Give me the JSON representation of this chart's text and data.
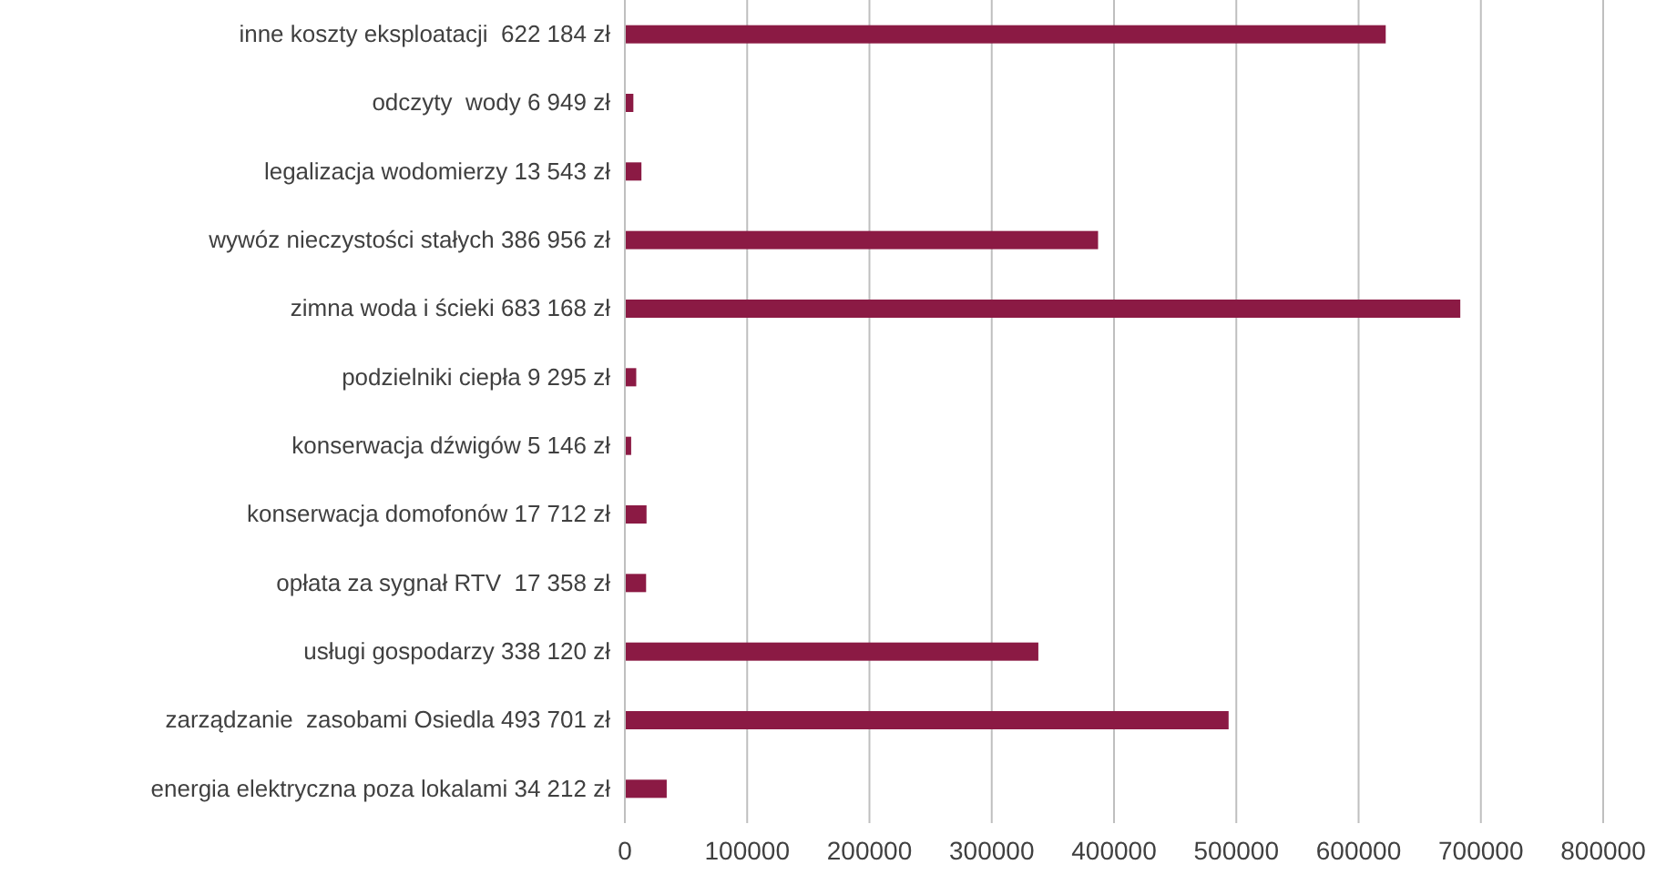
{
  "chart_data": {
    "type": "bar",
    "orientation": "horizontal",
    "categories": [
      "inne koszty eksploatacji  622 184 zł",
      "odczyty  wody 6 949 zł",
      "legalizacja wodomierzy 13 543 zł",
      "wywóz nieczystości stałych 386 956 zł",
      "zimna woda i ścieki 683 168 zł",
      "podzielniki ciepła 9 295 zł",
      "konserwacja dźwigów 5 146 zł",
      "konserwacja domofonów 17 712 zł",
      "opłata za sygnał RTV  17 358 zł",
      "usługi gospodarzy 338 120 zł",
      "zarządzanie  zasobami Osiedla 493 701 zł",
      "energia elektryczna poza lokalami 34 212 zł"
    ],
    "values": [
      622184,
      6949,
      13543,
      386956,
      683168,
      9295,
      5146,
      17712,
      17358,
      338120,
      493701,
      34212
    ],
    "color": "#8b1a44",
    "xlim": [
      0,
      800000
    ],
    "xticks": [
      0,
      100000,
      200000,
      300000,
      400000,
      500000,
      600000,
      700000,
      800000
    ],
    "grid": "x"
  }
}
